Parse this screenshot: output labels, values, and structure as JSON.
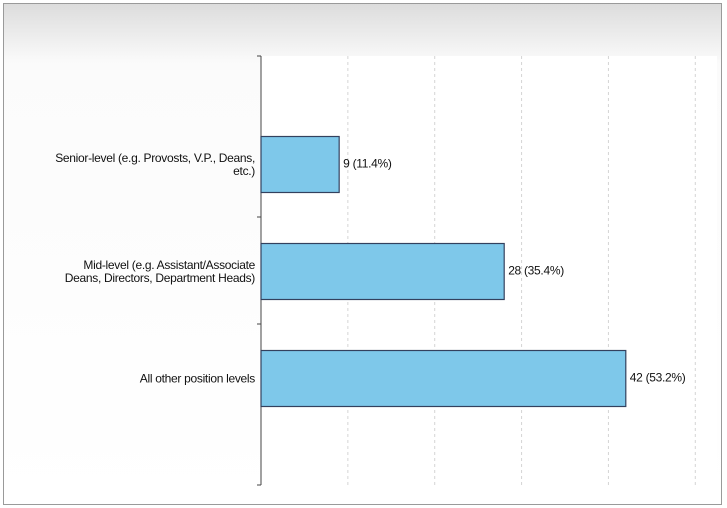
{
  "chart_data": {
    "type": "bar",
    "orientation": "horizontal",
    "categories": [
      "Senior-level (e.g. Provosts, V.P., Deans, etc.)",
      "Mid-level (e.g. Assistant/Associate Deans, Directors, Department Heads)",
      "All other position levels"
    ],
    "values": [
      9,
      28,
      42
    ],
    "value_labels": [
      "9 (11.4%)",
      "28 (35.4%)",
      "42 (53.2%)"
    ],
    "color": "#7ec8ea",
    "xlim": [
      0,
      52.5
    ],
    "xticks": [
      0,
      10,
      20,
      30,
      40,
      50
    ],
    "grid": true
  }
}
